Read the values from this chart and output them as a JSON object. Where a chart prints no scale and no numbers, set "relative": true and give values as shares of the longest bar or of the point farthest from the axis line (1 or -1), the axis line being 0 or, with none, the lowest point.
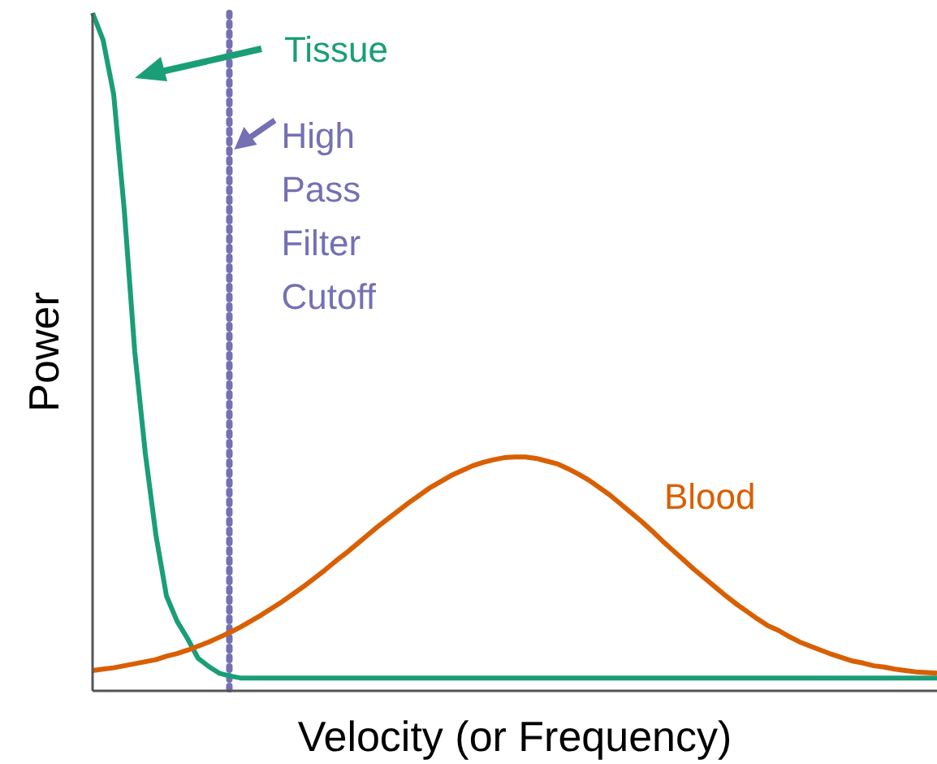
{
  "chart_data": {
    "type": "line",
    "relative": true,
    "xlabel": "Velocity (or Frequency)",
    "ylabel": "Power",
    "categories": [
      null,
      null,
      null,
      null,
      null,
      null,
      null,
      null,
      null,
      null,
      null,
      null,
      null,
      null,
      null,
      null,
      null,
      null,
      null,
      null,
      null,
      null,
      null,
      null,
      null,
      null,
      null,
      null,
      null,
      null,
      null,
      null,
      null,
      null,
      null,
      null,
      null,
      null,
      null,
      null,
      null,
      null,
      null,
      null,
      null,
      null,
      null,
      null,
      null,
      null,
      null,
      null,
      null,
      null,
      null,
      null,
      null,
      null,
      null,
      null,
      null,
      null,
      null,
      null,
      null,
      null,
      null,
      null,
      null,
      null,
      null,
      null,
      null,
      null,
      null,
      null,
      null,
      null,
      null,
      null,
      null
    ],
    "series": [
      {
        "name": "Tissue",
        "color": "#1a9e77",
        "values": [
          1.0,
          0.96,
          0.88,
          0.71,
          0.5,
          0.35,
          0.23,
          0.14,
          0.103,
          0.077,
          0.048,
          0.036,
          0.026,
          0.022,
          0.019,
          0.019,
          0.019,
          0.019,
          0.019,
          0.019,
          0.019,
          0.019,
          0.019,
          0.019,
          0.019,
          0.019,
          0.019,
          0.019,
          0.019,
          0.019,
          0.019,
          0.019,
          0.019,
          0.019,
          0.019,
          0.019,
          0.019,
          0.019,
          0.019,
          0.019,
          0.019,
          0.019,
          0.019,
          0.019,
          0.019,
          0.019,
          0.019,
          0.019,
          0.019,
          0.019,
          0.019,
          0.019,
          0.019,
          0.019,
          0.019,
          0.019,
          0.019,
          0.019,
          0.019,
          0.019,
          0.019,
          0.019,
          0.019,
          0.019,
          0.019,
          0.019,
          0.019,
          0.019,
          0.019,
          0.019,
          0.019,
          0.019,
          0.019,
          0.019,
          0.019,
          0.019,
          0.019,
          0.019,
          0.019,
          0.019,
          0.019
        ]
      },
      {
        "name": "Blood",
        "color": "#d95f02",
        "values": [
          0.03,
          0.032,
          0.034,
          0.037,
          0.04,
          0.043,
          0.046,
          0.051,
          0.055,
          0.06,
          0.066,
          0.072,
          0.079,
          0.086,
          0.094,
          0.103,
          0.112,
          0.122,
          0.132,
          0.143,
          0.154,
          0.166,
          0.178,
          0.191,
          0.203,
          0.216,
          0.229,
          0.242,
          0.254,
          0.266,
          0.278,
          0.289,
          0.3,
          0.309,
          0.318,
          0.325,
          0.332,
          0.337,
          0.341,
          0.344,
          0.345,
          0.345,
          0.343,
          0.339,
          0.335,
          0.328,
          0.32,
          0.311,
          0.3,
          0.289,
          0.276,
          0.263,
          0.25,
          0.236,
          0.221,
          0.207,
          0.193,
          0.179,
          0.166,
          0.153,
          0.14,
          0.128,
          0.117,
          0.106,
          0.096,
          0.089,
          0.08,
          0.072,
          0.066,
          0.06,
          0.054,
          0.049,
          0.044,
          0.041,
          0.037,
          0.035,
          0.032,
          0.03,
          0.028,
          0.027,
          0.026
        ]
      }
    ],
    "annotations": [
      "High Pass Filter Cutoff"
    ]
  }
}
